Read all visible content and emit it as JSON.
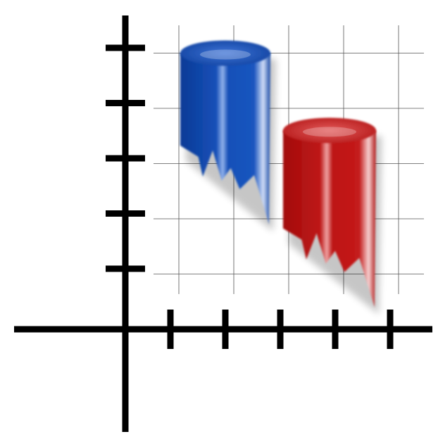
{
  "chart_data": {
    "type": "bar",
    "style": "3d-cylinder-torn",
    "title": "",
    "xlabel": "",
    "ylabel": "",
    "grid": true,
    "legend": "none",
    "x_ticks": 5,
    "y_ticks": 5,
    "series": [
      {
        "values": [
          5
        ],
        "color": "#1547a6"
      },
      {
        "values": [
          3.6
        ],
        "color": "#b81414"
      }
    ],
    "colors": {
      "axis": "#000000",
      "grid": "#555555",
      "background": "#ffffff"
    }
  }
}
